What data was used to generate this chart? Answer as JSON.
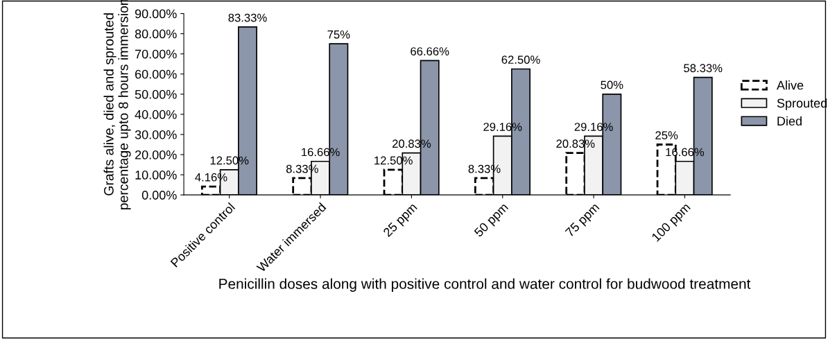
{
  "chart_data": {
    "type": "bar",
    "xlabel": "Penicillin doses along with positive control and water control for budwood treatment",
    "ylabel": "Grafts alive, died and sprouted\npercentage upto 8 hours immersion",
    "categories": [
      "Positive control",
      "Water immersed",
      "25 ppm",
      "50 ppm",
      "75 ppm",
      "100 ppm"
    ],
    "series": [
      {
        "name": "Alive",
        "color": "#ffffff",
        "line_style": "dashed",
        "values": [
          4.16,
          8.33,
          12.5,
          8.33,
          20.83,
          25
        ],
        "value_labels": [
          "4.16%",
          "8.33%",
          "12.50%",
          "8.33%",
          "20.83%",
          "25%"
        ]
      },
      {
        "name": "Sprouted",
        "color": "#f2f2f2",
        "line_style": "solid",
        "values": [
          12.5,
          16.66,
          20.83,
          29.16,
          29.16,
          16.66
        ],
        "value_labels": [
          "12.50%",
          "16.66%",
          "20.83%",
          "29.16%",
          "29.16%",
          "16.66%"
        ]
      },
      {
        "name": "Died",
        "color": "#8c96aa",
        "line_style": "solid",
        "values": [
          83.33,
          75,
          66.66,
          62.5,
          50,
          58.33
        ],
        "value_labels": [
          "83.33%",
          "75%",
          "66.66%",
          "62.50%",
          "50%",
          "58.33%"
        ]
      }
    ],
    "ylim": [
      0,
      90
    ],
    "yticks": [
      {
        "value": 0,
        "label": "0.00%"
      },
      {
        "value": 10,
        "label": "10.00%"
      },
      {
        "value": 20,
        "label": "20.00%"
      },
      {
        "value": 30,
        "label": "30.00%"
      },
      {
        "value": 40,
        "label": "40.00%"
      },
      {
        "value": 50,
        "label": "50.00%"
      },
      {
        "value": 60,
        "label": "60.00%"
      },
      {
        "value": 70,
        "label": "70.00%"
      },
      {
        "value": 80,
        "label": "80.00%"
      },
      {
        "value": 90,
        "label": "90.00%"
      }
    ],
    "grid": false,
    "legend": "right"
  }
}
